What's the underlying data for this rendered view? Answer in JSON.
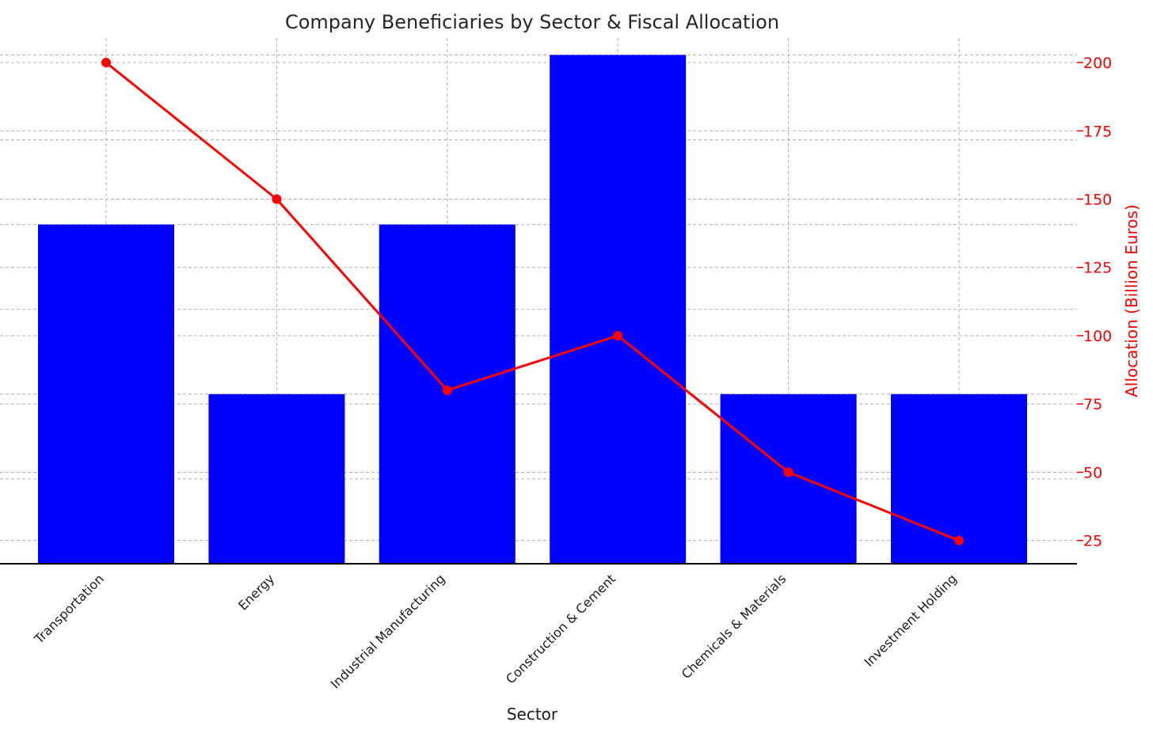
{
  "chart_data": {
    "type": "bar+line",
    "title": "Company Beneficiaries by Sector & Fiscal Allocation",
    "xlabel": "Sector",
    "categories": [
      "Transportation",
      "Energy",
      "Industrial Manufacturing",
      "Construction & Cement",
      "Chemicals & Materials",
      "Investment Holding"
    ],
    "bar_series": {
      "name": "Company Beneficiaries",
      "axis": "left (unlabeled)",
      "values": [
        4,
        2,
        4,
        6,
        2,
        2
      ],
      "ylim": [
        0,
        6.2
      ],
      "color": "#0000ff"
    },
    "line_series": {
      "name": "Allocation (Billion Euros)",
      "axis": "right",
      "values": [
        200,
        150,
        80,
        100,
        50,
        25
      ],
      "color": "#ff0000",
      "marker": "circle"
    },
    "right_axis": {
      "label": "Allocation (Billion Euros)",
      "ylim": [
        16.5,
        209
      ],
      "ticks": [
        25,
        50,
        75,
        100,
        125,
        150,
        175,
        200
      ],
      "tick_labels": [
        "25",
        "50",
        "75",
        "100",
        "125",
        "150",
        "175",
        "200"
      ],
      "color": "#ff0000"
    },
    "grid": true
  }
}
